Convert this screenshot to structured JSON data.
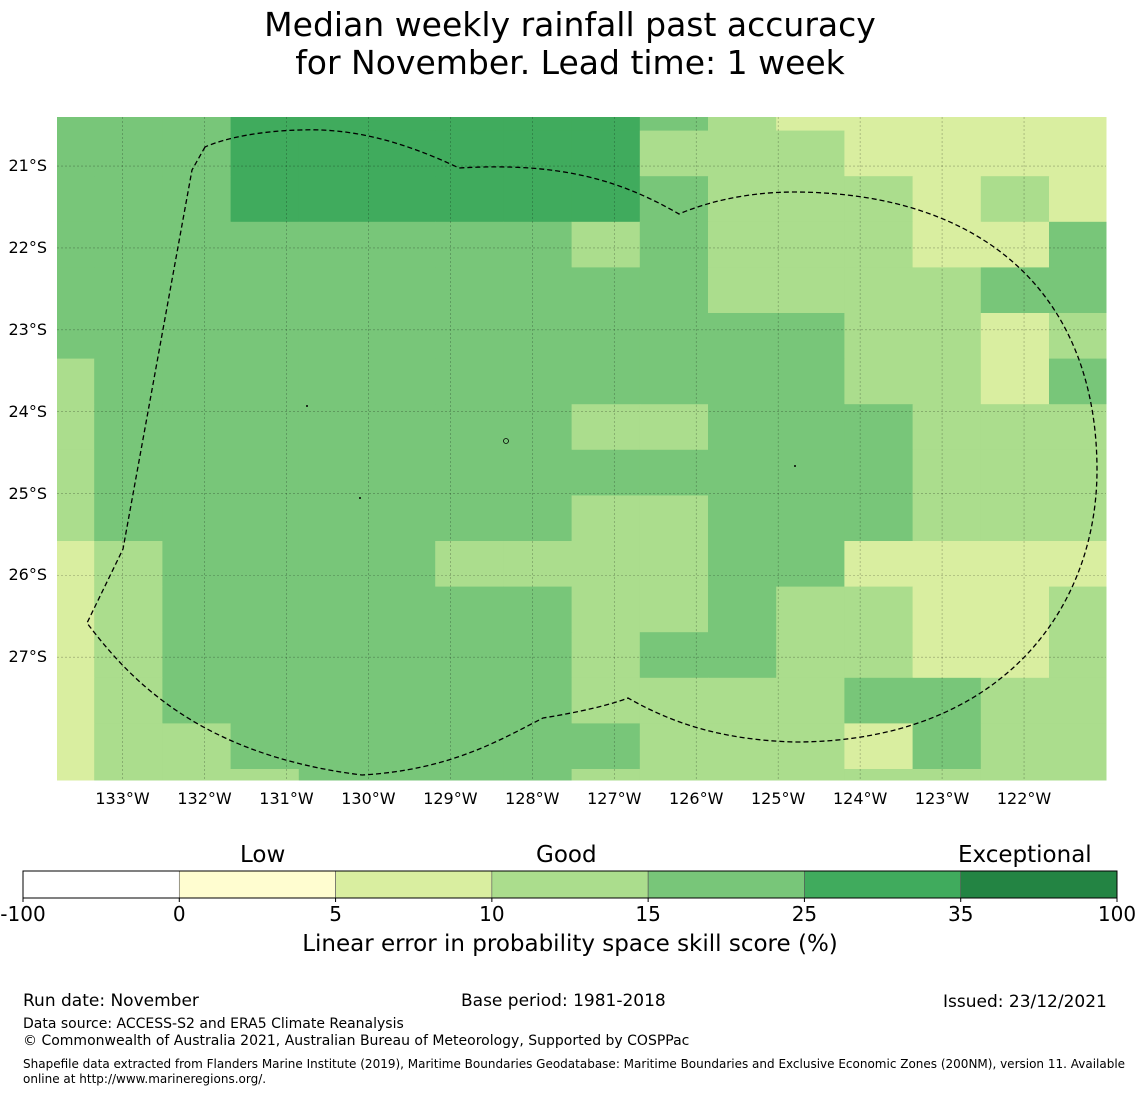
{
  "title": {
    "line1": "Median weekly rainfall past accuracy",
    "line2": "for November. Lead time: 1 week"
  },
  "map": {
    "lat_labels": [
      "21°S",
      "22°S",
      "23°S",
      "24°S",
      "25°S",
      "26°S",
      "27°S"
    ],
    "lon_labels": [
      "133°W",
      "132°W",
      "131°W",
      "130°W",
      "129°W",
      "128°W",
      "127°W",
      "126°W",
      "125°W",
      "124°W",
      "123°W",
      "122°W"
    ],
    "extent": {
      "lon_west": -133.8,
      "lon_east": -121.0,
      "lat_north": -20.4,
      "lat_south": -28.5
    },
    "grid_spacing_deg": 0.833,
    "cell_classes": [
      "4445555554322222",
      "4445555553332222",
      "4445555554333232",
      "4444444434333224",
      "4444444444333344",
      "4444444444443323",
      "3444444444443324",
      "3444444433444333",
      "3444444444444333",
      "3444444433444333",
      "2344443333442222",
      "2344444433433223",
      "2344444434433223",
      "2344444433334433",
      "2334444443332433",
      "2333444433333333",
      "2224444433334333",
      "2222344333334343",
      "3222244333334333",
      "3222333333333333",
      "3333344333333333",
      "3333344333333333",
      "3333333333333433",
      "3333333333333333"
    ]
  },
  "legend": {
    "categories": [
      "Low",
      "Good",
      "Exceptional"
    ],
    "ticks": [
      "-100",
      "0",
      "5",
      "10",
      "15",
      "25",
      "35",
      "100"
    ],
    "colors": [
      "#ffffff",
      "#fffdd0",
      "#d9eea0",
      "#abdd8d",
      "#78c679",
      "#40ab5d",
      "#238443"
    ],
    "title": "Linear error in probability space skill score (%)"
  },
  "footer": {
    "run_date": "Run date: November",
    "base_period": "Base period: 1981-2018",
    "issued": "Issued: 23/12/2021",
    "data_source": "Data source: ACCESS-S2 and ERA5 Climate Reanalysis",
    "copyright": "© Commonwealth of Australia 2021, Australian Bureau of Meteorology, Supported by COSPPac",
    "shapefile": "Shapefile data extracted from Flanders Marine Institute (2019), Maritime Boundaries Geodatabase: Maritime Boundaries and Exclusive Economic Zones (200NM), version 11. Available online at http://www.marineregions.org/."
  }
}
